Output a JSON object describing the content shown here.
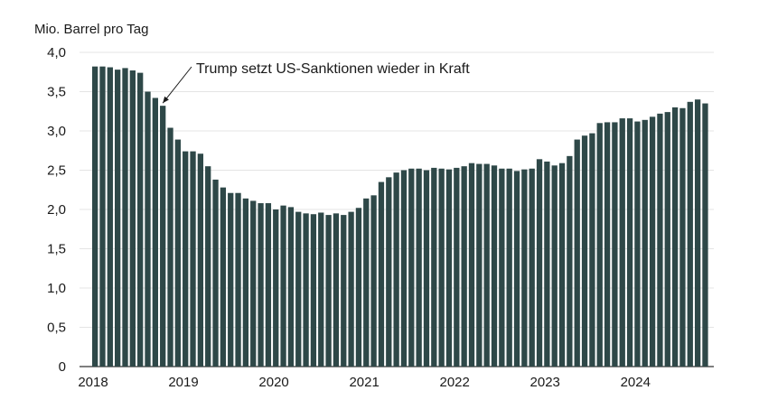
{
  "chart_data": {
    "type": "bar",
    "ylabel": "Mio. Barrel pro Tag",
    "ylim": [
      0,
      4
    ],
    "yticks": [
      0,
      0.5,
      1,
      1.5,
      2,
      2.5,
      3,
      3.5,
      4
    ],
    "ytick_labels": [
      "0",
      "0,5",
      "1,0",
      "1,5",
      "2,0",
      "2,5",
      "3,0",
      "3,5",
      "4,0"
    ],
    "xtick_labels": [
      "2018",
      "2019",
      "2020",
      "2021",
      "2022",
      "2023",
      "2024"
    ],
    "grid": "horizontal",
    "bar_color": "#2e4848",
    "annotation": {
      "text": "Trump setzt US-Sanktionen wieder in Kraft",
      "target_index": 9
    },
    "months_start": "2018-01",
    "values": [
      3.82,
      3.82,
      3.81,
      3.78,
      3.8,
      3.77,
      3.74,
      3.5,
      3.42,
      3.32,
      3.04,
      2.89,
      2.74,
      2.74,
      2.71,
      2.55,
      2.38,
      2.28,
      2.21,
      2.21,
      2.14,
      2.11,
      2.08,
      2.08,
      2.0,
      2.05,
      2.03,
      1.97,
      1.95,
      1.94,
      1.96,
      1.93,
      1.95,
      1.93,
      1.97,
      2.02,
      2.14,
      2.18,
      2.35,
      2.41,
      2.47,
      2.5,
      2.52,
      2.52,
      2.5,
      2.53,
      2.52,
      2.51,
      2.53,
      2.55,
      2.59,
      2.58,
      2.58,
      2.56,
      2.52,
      2.52,
      2.49,
      2.51,
      2.52,
      2.64,
      2.61,
      2.56,
      2.59,
      2.68,
      2.89,
      2.94,
      2.97,
      3.1,
      3.11,
      3.11,
      3.16,
      3.16,
      3.12,
      3.14,
      3.18,
      3.22,
      3.24,
      3.3,
      3.29,
      3.37,
      3.4,
      3.35
    ]
  }
}
